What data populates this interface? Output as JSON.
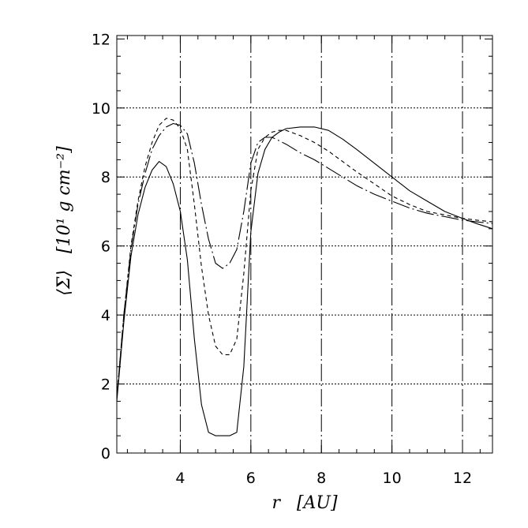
{
  "chart_data": {
    "type": "line",
    "title": "",
    "xlabel": "r   [AU]",
    "ylabel": "⟨Σ⟩   [10¹ g cm⁻²]",
    "xlim": [
      2.2,
      12.85
    ],
    "ylim": [
      0,
      12.1
    ],
    "x_ticks": [
      4,
      6,
      8,
      10,
      12
    ],
    "y_ticks": [
      0,
      2,
      4,
      6,
      8,
      10,
      12
    ],
    "x_tick_labels": [
      "4",
      "6",
      "8",
      "10",
      "12"
    ],
    "y_tick_labels": [
      "0",
      "2",
      "4",
      "6",
      "8",
      "10",
      "12"
    ],
    "grid": {
      "vertical_at": [
        4,
        6,
        8,
        10,
        12
      ],
      "vertical_style": "long-dash",
      "horizontal_at": [
        2,
        4,
        6,
        8,
        10
      ],
      "horizontal_style": "dotted"
    },
    "legend": "none",
    "series": [
      {
        "style": "solid",
        "x": [
          2.2,
          2.4,
          2.6,
          2.8,
          3.0,
          3.2,
          3.4,
          3.6,
          3.8,
          4.0,
          4.2,
          4.4,
          4.6,
          4.8,
          5.0,
          5.2,
          5.4,
          5.6,
          5.8,
          6.0,
          6.2,
          6.4,
          6.6,
          6.8,
          7.0,
          7.4,
          7.8,
          8.2,
          8.6,
          9.0,
          9.5,
          10.0,
          10.5,
          11.0,
          11.5,
          12.0,
          12.4,
          12.85
        ],
        "y": [
          1.5,
          3.8,
          5.7,
          6.9,
          7.7,
          8.2,
          8.45,
          8.3,
          7.8,
          7.0,
          5.6,
          3.3,
          1.4,
          0.6,
          0.5,
          0.5,
          0.5,
          0.6,
          2.5,
          6.4,
          8.1,
          8.8,
          9.15,
          9.3,
          9.4,
          9.45,
          9.45,
          9.35,
          9.1,
          8.8,
          8.4,
          8.0,
          7.6,
          7.3,
          7.0,
          6.8,
          6.65,
          6.5
        ]
      },
      {
        "style": "dashed",
        "x": [
          2.2,
          2.4,
          2.6,
          2.8,
          3.0,
          3.2,
          3.4,
          3.6,
          3.8,
          4.0,
          4.2,
          4.4,
          4.6,
          4.8,
          5.0,
          5.2,
          5.4,
          5.6,
          5.8,
          6.0,
          6.2,
          6.4,
          6.6,
          6.8,
          7.0,
          7.4,
          7.8,
          8.2,
          8.6,
          9.0,
          9.5,
          10.0,
          10.5,
          11.0,
          11.5,
          12.0,
          12.4,
          12.85
        ],
        "y": [
          1.6,
          4.0,
          6.0,
          7.3,
          8.3,
          9.0,
          9.5,
          9.7,
          9.65,
          9.4,
          8.8,
          7.2,
          5.4,
          4.0,
          3.1,
          2.85,
          2.85,
          3.3,
          5.2,
          7.6,
          8.8,
          9.15,
          9.3,
          9.35,
          9.35,
          9.2,
          9.0,
          8.75,
          8.45,
          8.15,
          7.8,
          7.45,
          7.2,
          7.0,
          6.9,
          6.8,
          6.75,
          6.7
        ]
      },
      {
        "style": "long-dash",
        "x": [
          2.2,
          2.4,
          2.6,
          2.8,
          3.0,
          3.2,
          3.4,
          3.6,
          3.8,
          4.0,
          4.2,
          4.4,
          4.6,
          4.8,
          5.0,
          5.2,
          5.4,
          5.6,
          5.8,
          6.0,
          6.2,
          6.4,
          6.6,
          6.8,
          7.0,
          7.4,
          7.8,
          8.2,
          8.6,
          9.0,
          9.5,
          10.0,
          10.5,
          11.0,
          11.5,
          12.0,
          12.4,
          12.85
        ],
        "y": [
          1.6,
          4.0,
          5.9,
          7.2,
          8.1,
          8.8,
          9.2,
          9.45,
          9.55,
          9.5,
          9.25,
          8.4,
          7.2,
          6.2,
          5.5,
          5.35,
          5.5,
          5.9,
          7.0,
          8.4,
          9.0,
          9.15,
          9.15,
          9.05,
          8.95,
          8.7,
          8.5,
          8.25,
          8.0,
          7.75,
          7.5,
          7.3,
          7.1,
          6.95,
          6.85,
          6.75,
          6.7,
          6.65
        ]
      }
    ]
  }
}
